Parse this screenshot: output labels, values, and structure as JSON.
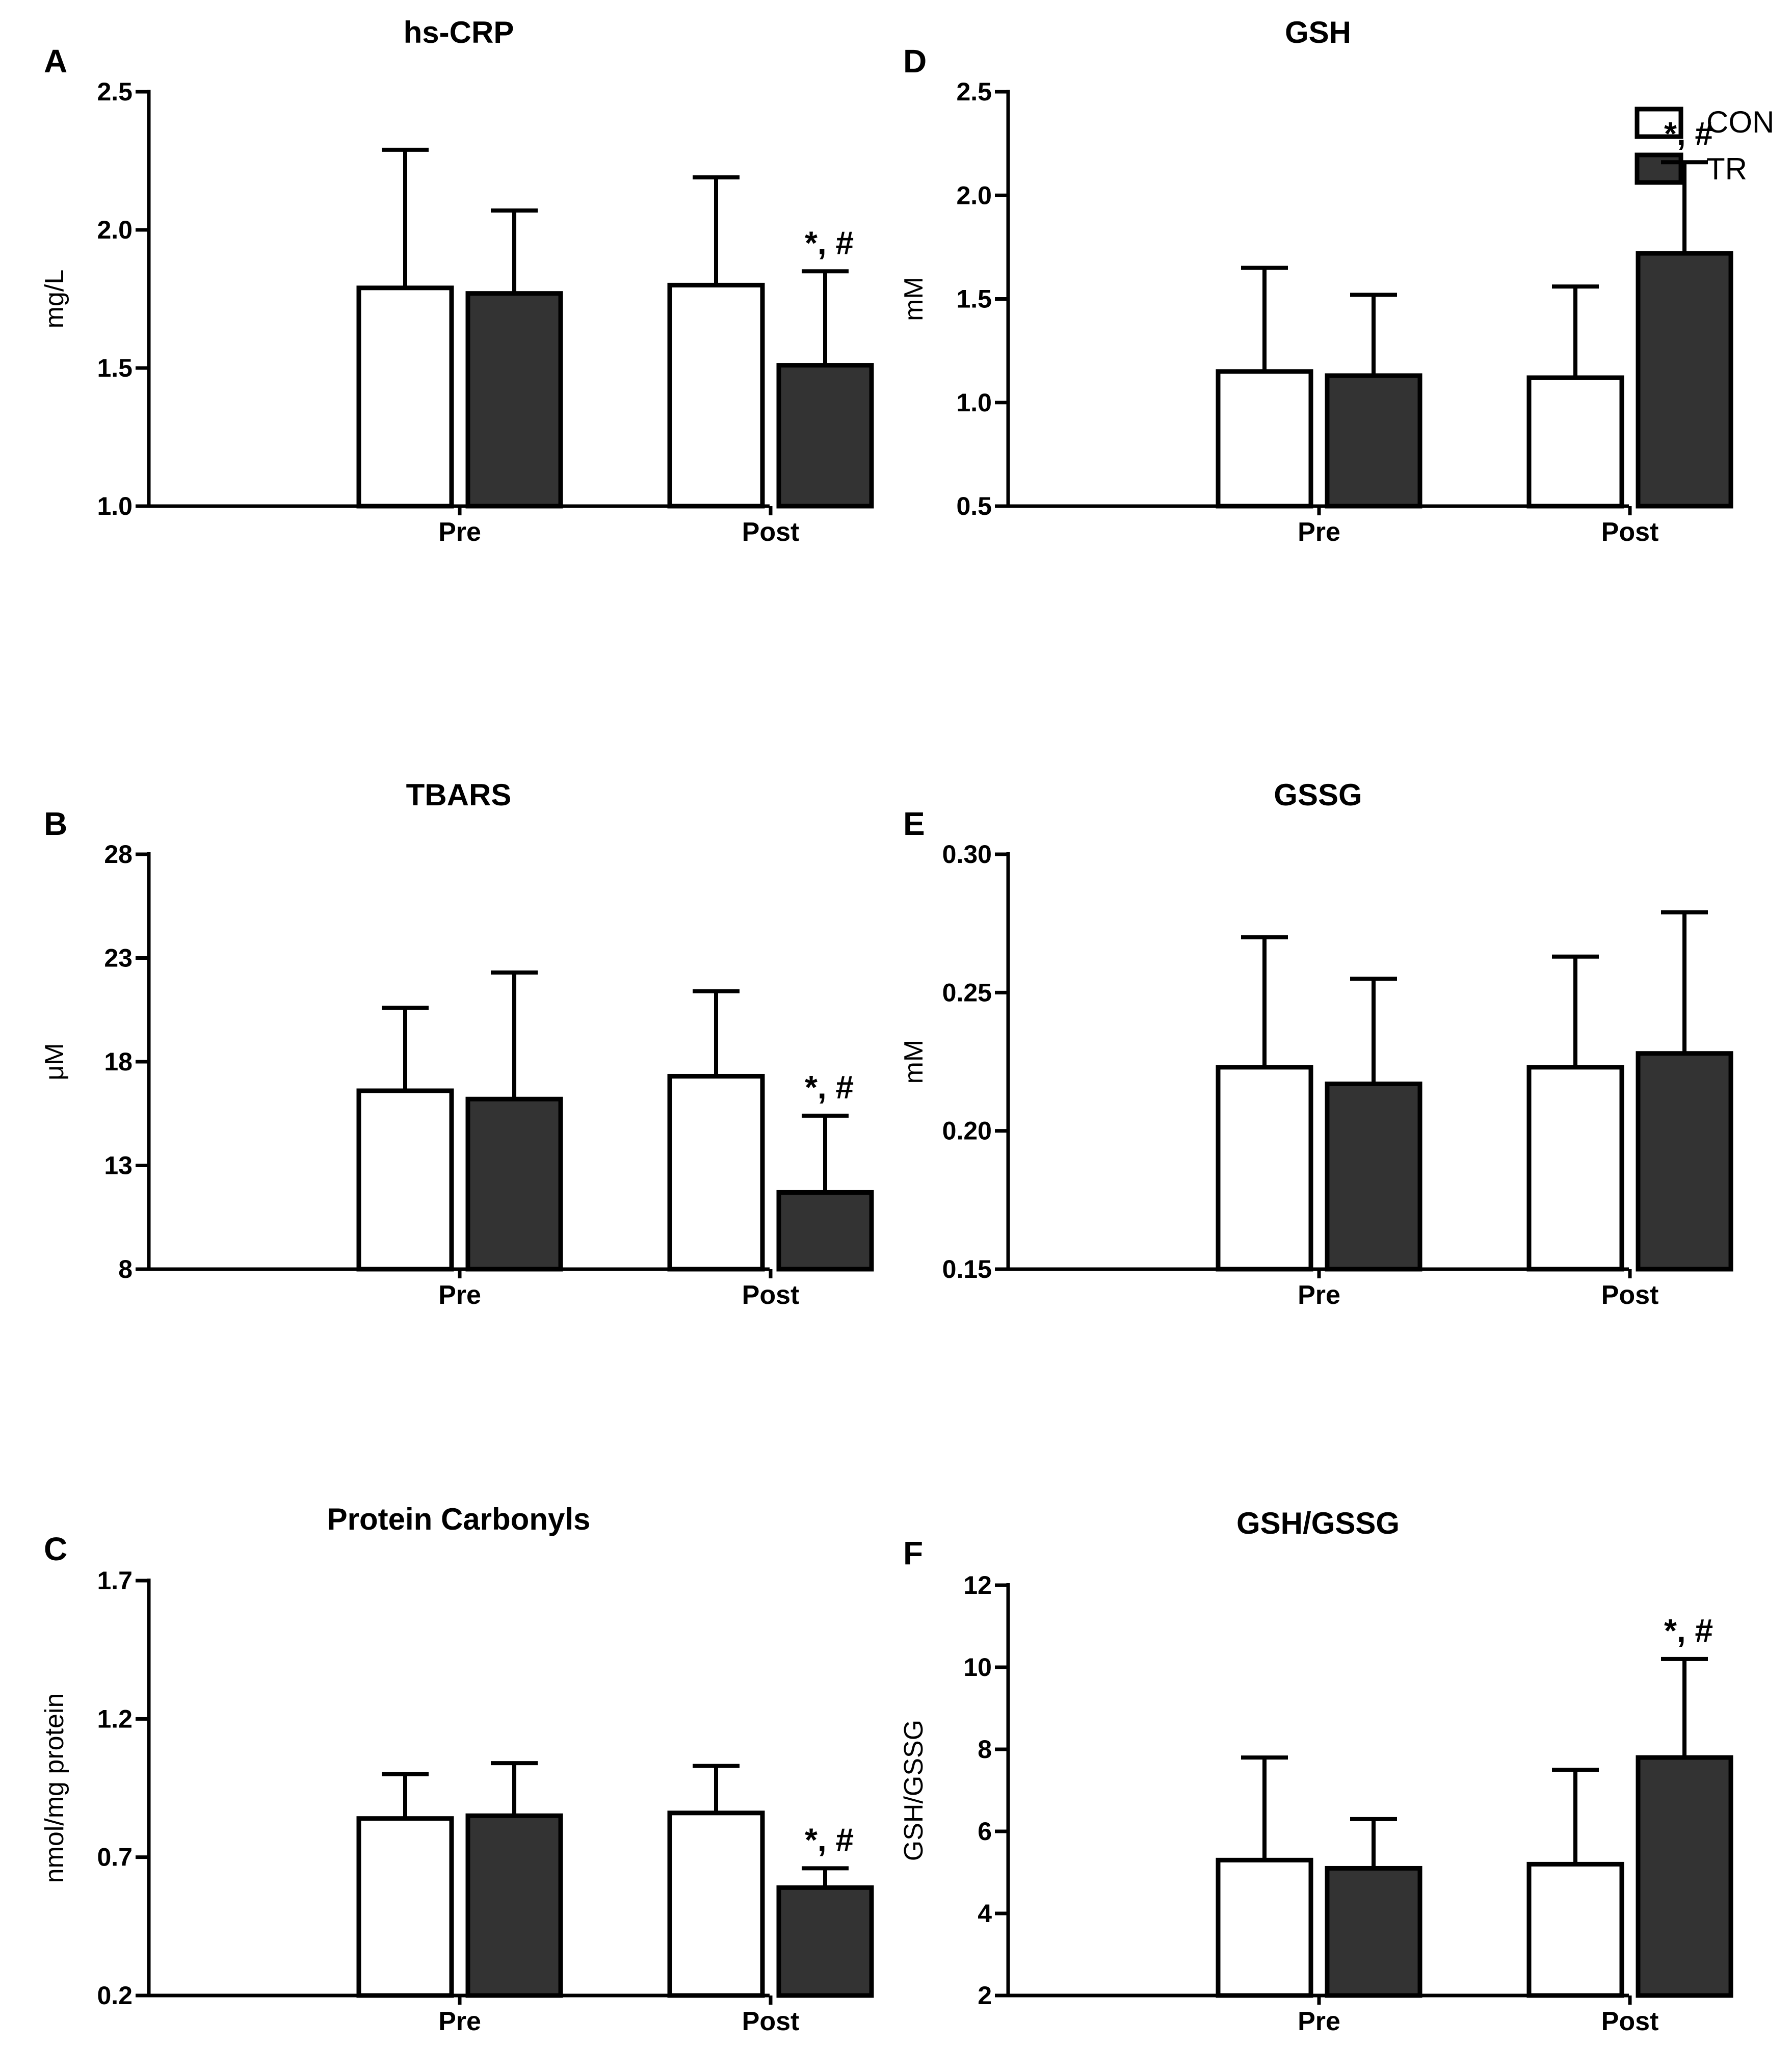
{
  "legend": {
    "position": "top-right",
    "entries": [
      {
        "label": "CON",
        "color": "#ffffff"
      },
      {
        "label": "TR",
        "color": "#333333"
      }
    ]
  },
  "chart_data": [
    {
      "type": "bar",
      "panel": "A",
      "title": "hs-CRP",
      "ylabel": "mg/L",
      "ylim": [
        1.0,
        2.5
      ],
      "yticks": [
        "1.0",
        "1.5",
        "2.0",
        "2.5"
      ],
      "categories": [
        "Pre",
        "Post"
      ],
      "series": [
        {
          "name": "CON",
          "values": [
            1.79,
            1.8
          ],
          "errors": [
            0.5,
            0.39
          ]
        },
        {
          "name": "TR",
          "values": [
            1.77,
            1.51
          ],
          "errors": [
            0.3,
            0.34
          ]
        }
      ],
      "annotations": [
        {
          "text": "*, #",
          "category": "Post",
          "series": "TR"
        }
      ]
    },
    {
      "type": "bar",
      "panel": "B",
      "title": "TBARS",
      "ylabel": "μM",
      "ylim": [
        8,
        28
      ],
      "yticks": [
        "8",
        "13",
        "18",
        "23",
        "28"
      ],
      "categories": [
        "Pre",
        "Post"
      ],
      "series": [
        {
          "name": "CON",
          "values": [
            16.6,
            17.3
          ],
          "errors": [
            4.0,
            4.1
          ]
        },
        {
          "name": "TR",
          "values": [
            16.2,
            11.7
          ],
          "errors": [
            6.1,
            3.7
          ]
        }
      ],
      "annotations": [
        {
          "text": "*, #",
          "category": "Post",
          "series": "TR"
        }
      ]
    },
    {
      "type": "bar",
      "panel": "C",
      "title": "Protein Carbonyls",
      "ylabel": "nmol/mg protein",
      "ylim": [
        0.2,
        1.7
      ],
      "yticks": [
        "0.2",
        "0.7",
        "1.2",
        "1.7"
      ],
      "categories": [
        "Pre",
        "Post"
      ],
      "series": [
        {
          "name": "CON",
          "values": [
            0.84,
            0.86
          ],
          "errors": [
            0.16,
            0.17
          ]
        },
        {
          "name": "TR",
          "values": [
            0.85,
            0.59
          ],
          "errors": [
            0.19,
            0.07
          ]
        }
      ],
      "annotations": [
        {
          "text": "*, #",
          "category": "Post",
          "series": "TR"
        }
      ]
    },
    {
      "type": "bar",
      "panel": "D",
      "title": "GSH",
      "ylabel": "mM",
      "ylim": [
        0.5,
        2.5
      ],
      "yticks": [
        "0.5",
        "1.0",
        "1.5",
        "2.0",
        "2.5"
      ],
      "categories": [
        "Pre",
        "Post"
      ],
      "series": [
        {
          "name": "CON",
          "values": [
            1.15,
            1.12
          ],
          "errors": [
            0.5,
            0.44
          ]
        },
        {
          "name": "TR",
          "values": [
            1.13,
            1.72
          ],
          "errors": [
            0.39,
            0.44
          ]
        }
      ],
      "annotations": [
        {
          "text": "*, #",
          "category": "Post",
          "series": "TR"
        }
      ]
    },
    {
      "type": "bar",
      "panel": "E",
      "title": "GSSG",
      "ylabel": "mM",
      "ylim": [
        0.15,
        0.3
      ],
      "yticks": [
        "0.15",
        "0.20",
        "0.25",
        "0.30"
      ],
      "categories": [
        "Pre",
        "Post"
      ],
      "series": [
        {
          "name": "CON",
          "values": [
            0.223,
            0.223
          ],
          "errors": [
            0.047,
            0.04
          ]
        },
        {
          "name": "TR",
          "values": [
            0.217,
            0.228
          ],
          "errors": [
            0.038,
            0.051
          ]
        }
      ],
      "annotations": []
    },
    {
      "type": "bar",
      "panel": "F",
      "title": "GSH/GSSG",
      "ylabel": "GSH/GSSG",
      "ylim": [
        2,
        12
      ],
      "yticks": [
        "2",
        "4",
        "6",
        "8",
        "10",
        "12"
      ],
      "categories": [
        "Pre",
        "Post"
      ],
      "series": [
        {
          "name": "CON",
          "values": [
            5.3,
            5.2
          ],
          "errors": [
            2.5,
            2.3
          ]
        },
        {
          "name": "TR",
          "values": [
            5.1,
            7.8
          ],
          "errors": [
            1.2,
            2.4
          ]
        }
      ],
      "annotations": [
        {
          "text": "*, #",
          "category": "Post",
          "series": "TR"
        }
      ]
    }
  ]
}
